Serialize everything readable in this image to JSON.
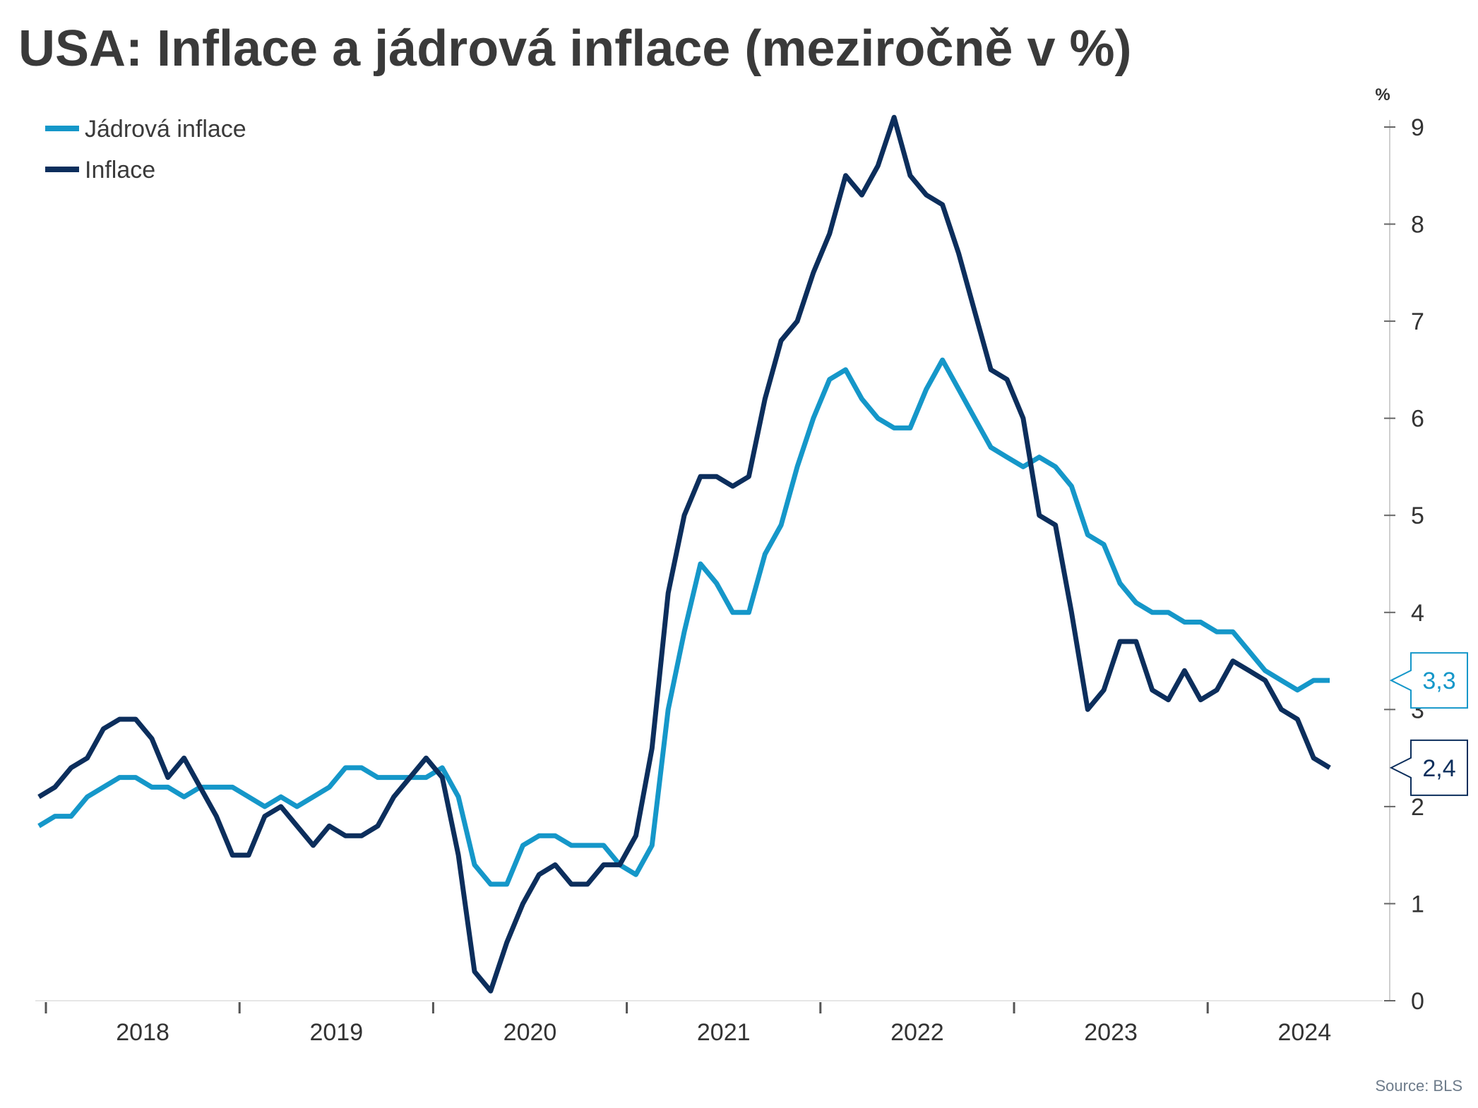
{
  "title": "USA: Inflace a jádrová inflace (meziročně v %)",
  "source": "Source: BLS",
  "colors": {
    "core": "#1597c9",
    "headline": "#0c2e5c",
    "axis": "#333333",
    "tick_text": "#333333"
  },
  "chart_data": {
    "type": "line",
    "title": "USA: Inflace a jádrová inflace (meziročně v %)",
    "ylabel": "%",
    "ylim": [
      0,
      9
    ],
    "yticks": [
      0,
      1,
      2,
      3,
      4,
      5,
      6,
      7,
      8,
      9
    ],
    "year_labels": [
      "2018",
      "2019",
      "2020",
      "2021",
      "2022",
      "2023",
      "2024"
    ],
    "x_start": "2018-01",
    "legend": [
      {
        "key": "core",
        "label": "Jádrová inflace"
      },
      {
        "key": "headline",
        "label": "Inflace"
      }
    ],
    "series": [
      {
        "key": "core",
        "name": "Jádrová inflace",
        "last_label": "3,3",
        "values": [
          1.8,
          1.9,
          1.9,
          2.1,
          2.2,
          2.3,
          2.3,
          2.2,
          2.2,
          2.1,
          2.2,
          2.2,
          2.2,
          2.1,
          2.0,
          2.1,
          2.0,
          2.1,
          2.2,
          2.4,
          2.4,
          2.3,
          2.3,
          2.3,
          2.3,
          2.4,
          2.1,
          1.4,
          1.2,
          1.2,
          1.6,
          1.7,
          1.7,
          1.6,
          1.6,
          1.6,
          1.4,
          1.3,
          1.6,
          3.0,
          3.8,
          4.5,
          4.3,
          4.0,
          4.0,
          4.6,
          4.9,
          5.5,
          6.0,
          6.4,
          6.5,
          6.2,
          6.0,
          5.9,
          5.9,
          6.3,
          6.6,
          6.3,
          6.0,
          5.7,
          5.6,
          5.5,
          5.6,
          5.5,
          5.3,
          4.8,
          4.7,
          4.3,
          4.1,
          4.0,
          4.0,
          3.9,
          3.9,
          3.8,
          3.8,
          3.6,
          3.4,
          3.3,
          3.2,
          3.3,
          3.3
        ]
      },
      {
        "key": "headline",
        "name": "Inflace",
        "last_label": "2,4",
        "values": [
          2.1,
          2.2,
          2.4,
          2.5,
          2.8,
          2.9,
          2.9,
          2.7,
          2.3,
          2.5,
          2.2,
          1.9,
          1.5,
          1.5,
          1.9,
          2.0,
          1.8,
          1.6,
          1.8,
          1.7,
          1.7,
          1.8,
          2.1,
          2.3,
          2.5,
          2.3,
          1.5,
          0.3,
          0.1,
          0.6,
          1.0,
          1.3,
          1.4,
          1.2,
          1.2,
          1.4,
          1.4,
          1.7,
          2.6,
          4.2,
          5.0,
          5.4,
          5.4,
          5.3,
          5.4,
          6.2,
          6.8,
          7.0,
          7.5,
          7.9,
          8.5,
          8.3,
          8.6,
          9.1,
          8.5,
          8.3,
          8.2,
          7.7,
          7.1,
          6.5,
          6.4,
          6.0,
          5.0,
          4.9,
          4.0,
          3.0,
          3.2,
          3.7,
          3.7,
          3.2,
          3.1,
          3.4,
          3.1,
          3.2,
          3.5,
          3.4,
          3.3,
          3.0,
          2.9,
          2.5,
          2.4
        ]
      }
    ]
  }
}
